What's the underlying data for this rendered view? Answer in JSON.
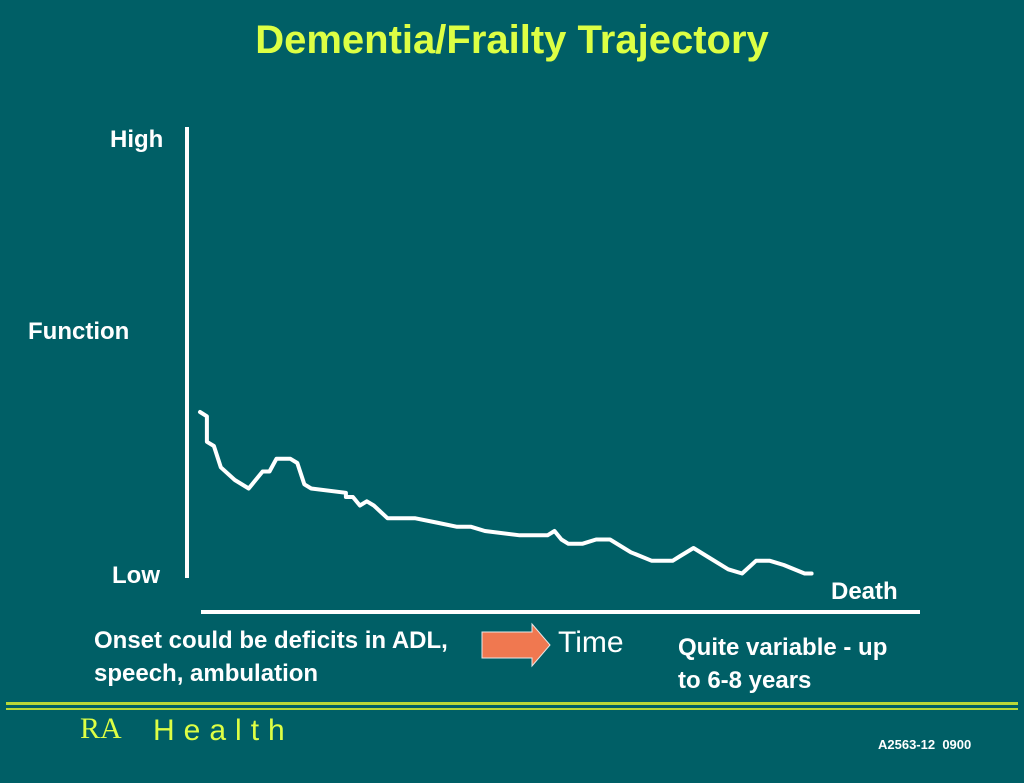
{
  "slide": {
    "title": "Dementia/Frailty Trajectory",
    "onset_note": "Onset could be deficits in ADL, speech, ambulation",
    "duration_note": "Quite variable - up to 6-8 years",
    "time_label": "Time",
    "footer": {
      "brand_ra": "RA",
      "brand_health": "Health",
      "code": "A2563-12  0900"
    }
  },
  "colors": {
    "background": "#005f66",
    "title": "#ddff44",
    "line": "#ffffff",
    "arrow": "#f07850",
    "footer_rule": "#b8d838"
  },
  "chart_data": {
    "type": "line",
    "title": "Dementia/Frailty Trajectory",
    "xlabel": "Time",
    "ylabel": "Function",
    "ytick_labels": [
      "High",
      "Low"
    ],
    "end_label": "Death",
    "xlim": [
      0,
      100
    ],
    "ylim": [
      0,
      100
    ],
    "grid": false,
    "series": [
      {
        "values": [
          [
            0,
            36
          ],
          [
            1,
            35
          ],
          [
            1,
            29
          ],
          [
            2,
            28
          ],
          [
            3,
            23
          ],
          [
            5,
            20
          ],
          [
            7,
            18
          ],
          [
            9,
            22
          ],
          [
            10,
            22
          ],
          [
            11,
            25
          ],
          [
            13,
            25
          ],
          [
            14,
            24
          ],
          [
            15,
            19
          ],
          [
            16,
            18
          ],
          [
            21,
            17
          ],
          [
            21,
            16
          ],
          [
            22,
            16
          ],
          [
            23,
            14
          ],
          [
            24,
            15
          ],
          [
            25,
            14
          ],
          [
            27,
            11
          ],
          [
            31,
            11
          ],
          [
            34,
            10
          ],
          [
            37,
            9
          ],
          [
            39,
            9
          ],
          [
            41,
            8
          ],
          [
            46,
            7
          ],
          [
            50,
            7
          ],
          [
            51,
            8
          ],
          [
            52,
            6
          ],
          [
            53,
            5
          ],
          [
            55,
            5
          ],
          [
            57,
            6
          ],
          [
            59,
            6
          ],
          [
            62,
            3
          ],
          [
            65,
            1
          ],
          [
            68,
            1
          ],
          [
            69,
            2
          ],
          [
            71,
            4
          ],
          [
            73,
            2
          ],
          [
            76,
            -1
          ],
          [
            78,
            -2
          ],
          [
            80,
            1
          ],
          [
            82,
            1
          ],
          [
            84,
            0
          ],
          [
            87,
            -2
          ],
          [
            88,
            -2
          ]
        ]
      }
    ]
  }
}
